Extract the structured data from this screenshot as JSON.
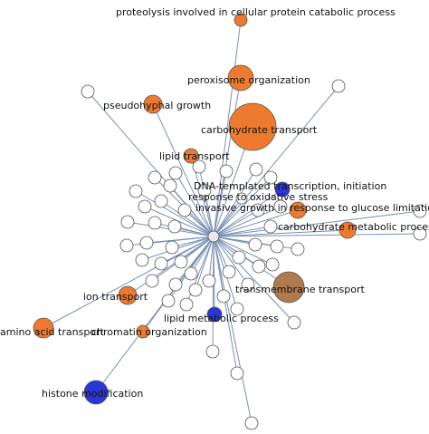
{
  "colors": {
    "orange": "#ee7a2f",
    "blue": "#2a36d8",
    "brown": "#b07a4f",
    "white": "#ffffff",
    "hub": "#e8e8ee"
  },
  "labels": {
    "proteolysis": "proteolysis involved in cellular protein catabolic process",
    "peroxisome": "peroxisome organization",
    "pseudohyphal": "pseudohyphal growth",
    "carbohydrate_transport": "carbohydrate transport",
    "lipid_transport": "lipid transport",
    "dna_templated": "DNA-templated transcription, initiation",
    "oxidative_stress": "response to oxidative stress",
    "invasive_growth": "invasive growth in response to glucose limitation",
    "carbohydrate_metabolic": "carbohydrate metabolic process",
    "transmembrane_transport": "transmembrane transport",
    "ion_transport": "ion transport",
    "lipid_metabolic": "lipid metabolic process",
    "amino_acid_transport": "amino acid transport",
    "chromatin_organization": "chromatin organization",
    "histone_modification": "histone modification"
  }
}
